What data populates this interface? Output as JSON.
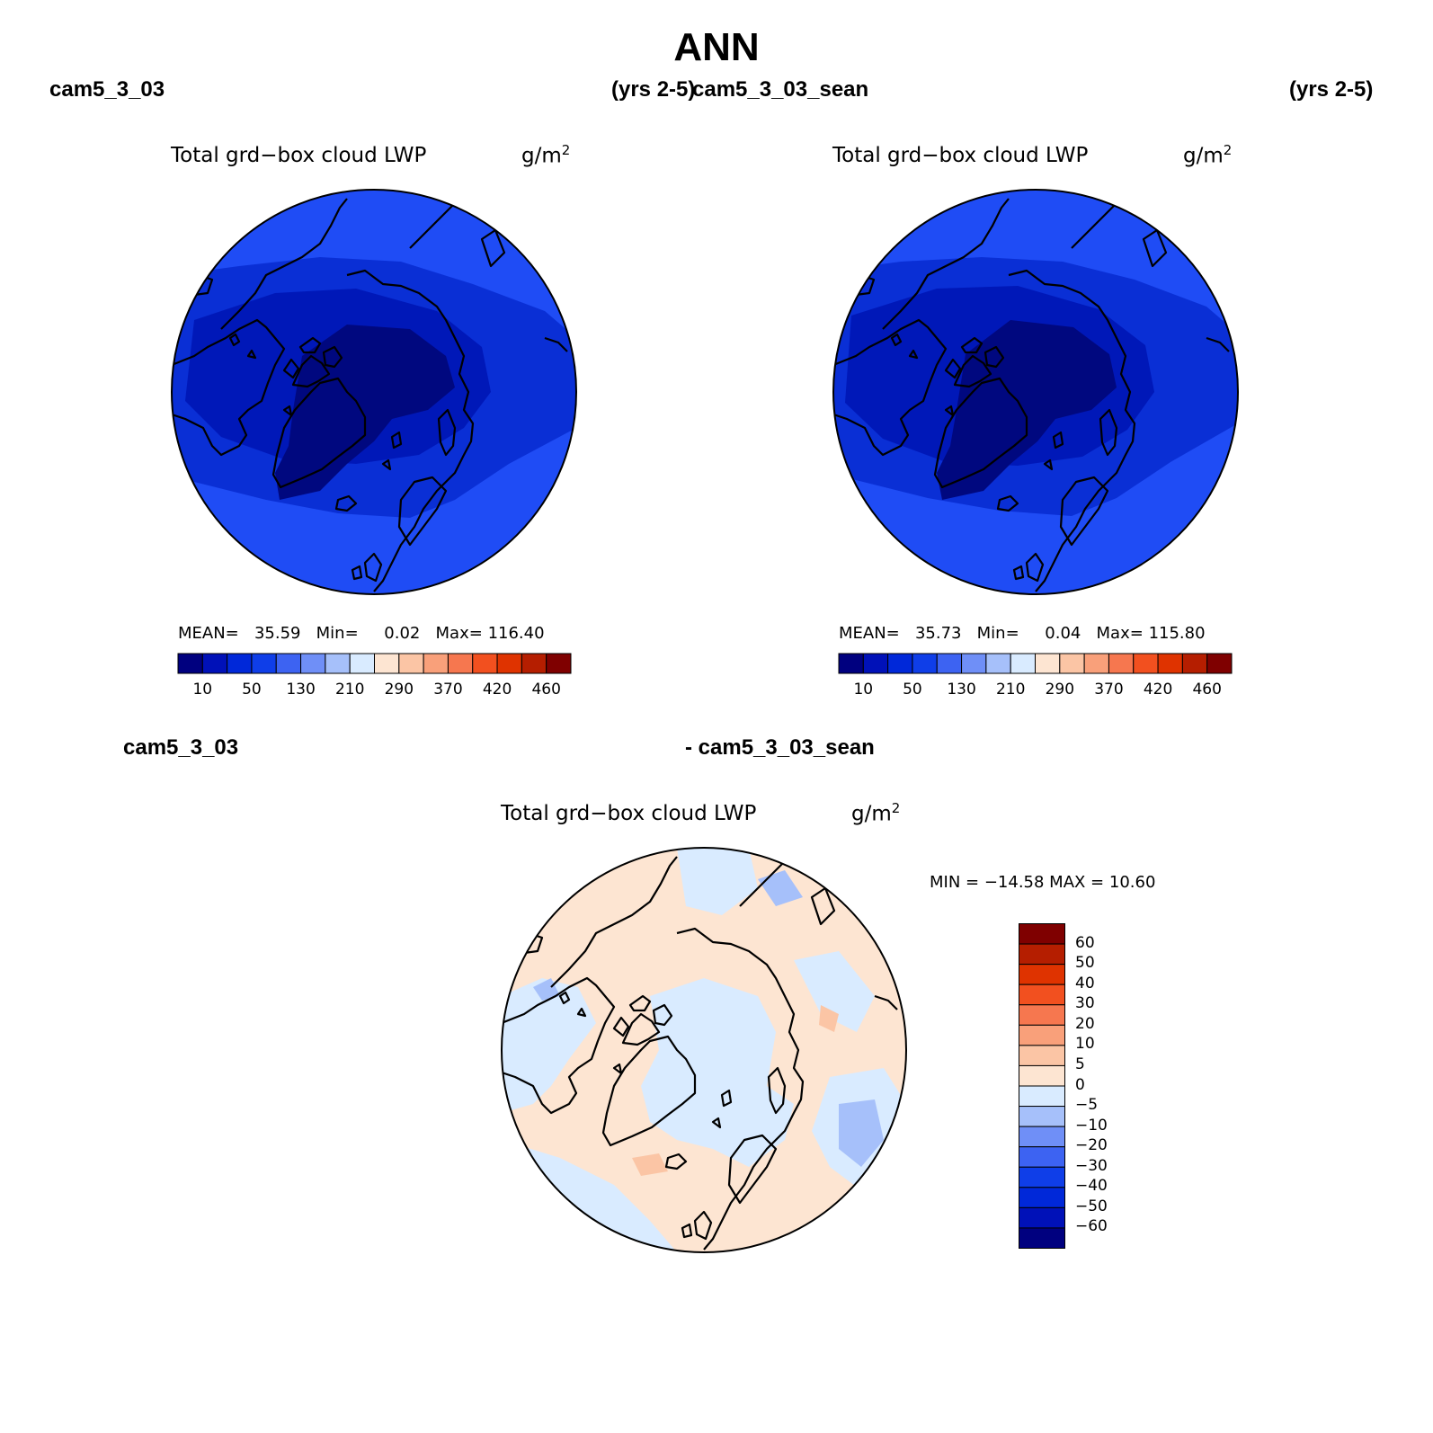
{
  "title": "ANN",
  "top_left": {
    "case_label": "cam5_3_03",
    "years_label": "(yrs 2-5)",
    "plot_title": "Total grd−box cloud LWP",
    "units_base": "g/m",
    "units_exp": "2",
    "stats": {
      "mean_label": "MEAN=",
      "mean": "35.59",
      "min_label": "Min=",
      "min": "0.02",
      "max_label": "Max=",
      "max": "116.40"
    },
    "colorbar": {
      "colors": [
        "#00007f",
        "#0011b8",
        "#0028d9",
        "#0f3ee8",
        "#3d63f2",
        "#6f8ff7",
        "#a6c0fa",
        "#d9ebff",
        "#fde5d2",
        "#fbc5a5",
        "#f9a07a",
        "#f6774f",
        "#f2501f",
        "#df3300",
        "#b51e00",
        "#7f0000"
      ],
      "tick_labels": [
        "10",
        "50",
        "130",
        "210",
        "290",
        "370",
        "420",
        "460"
      ]
    }
  },
  "top_right": {
    "case_label": "cam5_3_03_sean",
    "years_label": "(yrs 2-5)",
    "plot_title": "Total grd−box cloud LWP",
    "units_base": "g/m",
    "units_exp": "2",
    "stats": {
      "mean_label": "MEAN=",
      "mean": "35.73",
      "min_label": "Min=",
      "min": "0.04",
      "max_label": "Max=",
      "max": "115.80"
    },
    "colorbar": {
      "colors": [
        "#00007f",
        "#0011b8",
        "#0028d9",
        "#0f3ee8",
        "#3d63f2",
        "#6f8ff7",
        "#a6c0fa",
        "#d9ebff",
        "#fde5d2",
        "#fbc5a5",
        "#f9a07a",
        "#f6774f",
        "#f2501f",
        "#df3300",
        "#b51e00",
        "#7f0000"
      ],
      "tick_labels": [
        "10",
        "50",
        "130",
        "210",
        "290",
        "370",
        "420",
        "460"
      ]
    }
  },
  "bottom": {
    "case_label_left": "cam5_3_03",
    "case_label_right": "- cam5_3_03_sean",
    "plot_title": "Total grd−box cloud LWP",
    "units_base": "g/m",
    "units_exp": "2",
    "minmax": "MIN = −14.58 MAX =   10.60",
    "colorbar": {
      "colors": [
        "#7f0000",
        "#b51e00",
        "#df3300",
        "#f2501f",
        "#f6774f",
        "#f9a07a",
        "#fbc5a5",
        "#fde5d2",
        "#d9ebff",
        "#a6c0fa",
        "#6f8ff7",
        "#3d63f2",
        "#0f3ee8",
        "#0028d9",
        "#0011b8",
        "#00007f"
      ],
      "tick_labels": [
        "60",
        "50",
        "40",
        "30",
        "20",
        "10",
        "5",
        "0",
        "−5",
        "−10",
        "−20",
        "−30",
        "−40",
        "−50",
        "−60"
      ]
    }
  },
  "map_colors": {
    "lwp_outer": "#1f4cf5",
    "lwp_mid": "#0a2fd5",
    "lwp_inner": "#0018b8",
    "lwp_core": "#00087f",
    "diff_pos": "#fde5d2",
    "diff_neg": "#d9ebff",
    "diff_neg2": "#a6c0fa",
    "diff_pos2": "#fbc5a5",
    "coast": "#000000"
  }
}
